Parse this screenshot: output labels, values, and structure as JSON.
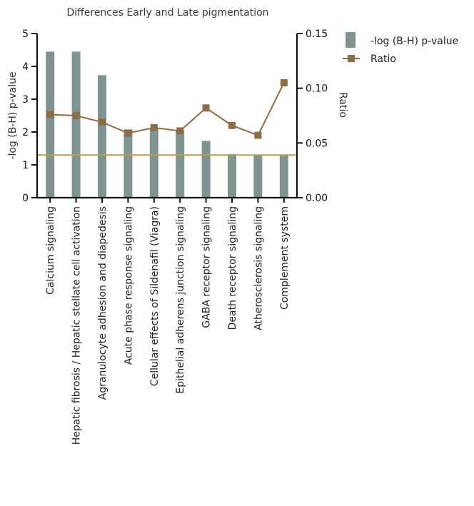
{
  "chart_data": {
    "type": "bar",
    "title": "Differences Early and Late pigmentation",
    "categories": [
      "Calcium signaling",
      "Hepatic fibrosis / Hepatic stellate cell activation",
      "Agranulocyte adhesion and diapedesis",
      "Acute phase response signaling",
      "Cellular effects of Sildenafil (Viagra)",
      "Epithelial adherens junction signaling",
      "GABA receptor signaling",
      "Death receptor signaling",
      "Atherosclerosis signaling",
      "Complement system"
    ],
    "series": [
      {
        "name": "-log (B-H) p-value",
        "type": "bar",
        "axis": "left",
        "color": "#7f9393",
        "values": [
          4.45,
          4.45,
          3.73,
          2.08,
          2.1,
          2.05,
          1.73,
          1.33,
          1.3,
          1.3
        ]
      },
      {
        "name": "Ratio",
        "type": "line",
        "axis": "right",
        "color": "#8c6d46",
        "values": [
          0.076,
          0.075,
          0.069,
          0.059,
          0.064,
          0.061,
          0.082,
          0.066,
          0.057,
          0.105
        ]
      }
    ],
    "ylabel": "-log (B-H) p-value",
    "ylim": [
      0,
      5
    ],
    "yticks": [
      "0",
      "1",
      "2",
      "3",
      "4",
      "5"
    ],
    "y2label": "Ratio",
    "y2lim": [
      0,
      0.15
    ],
    "y2ticks": [
      "0.00",
      "0.05",
      "0.10",
      "0.15"
    ],
    "threshold": {
      "value": 1.3,
      "axis": "left",
      "color": "#b2a352"
    },
    "legend_position": "top-right",
    "grid": false
  }
}
